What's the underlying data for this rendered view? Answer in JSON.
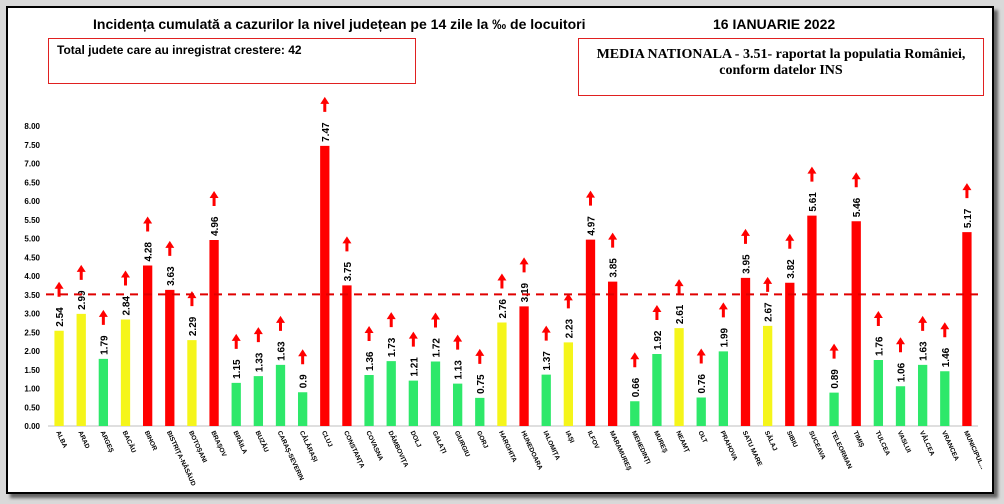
{
  "title": "Incidența cumulată a cazurilor la nivel județean pe 14 zile la ‰ de locuitori",
  "date": "16 IANUARIE 2022",
  "growth_note": "Total judete care au inregistrat crestere: 42",
  "national_note": {
    "line1": "MEDIA NATIONALA - 3.51-   raportat la populatia României,",
    "line2": "conform datelor INS"
  },
  "colors": {
    "green": "#2ee86a",
    "yellow": "#f5f51a",
    "red": "#ff0000",
    "reference": "#e00000",
    "arrow": "#ff0000"
  },
  "chart_data": {
    "type": "bar",
    "title": "Incidența cumulată a cazurilor la nivel județean pe 14 zile la ‰ de locuitori",
    "ylim": [
      0,
      8
    ],
    "yticks": [
      "0.00",
      "0.50",
      "1.00",
      "1.50",
      "2.00",
      "2.50",
      "3.00",
      "3.50",
      "4.00",
      "4.50",
      "5.00",
      "5.50",
      "6.00",
      "6.50",
      "7.00",
      "7.50",
      "8.00"
    ],
    "reference_line": 3.51,
    "categories": [
      "ALBA",
      "ARAD",
      "ARGEȘ",
      "BACĂU",
      "BIHOR",
      "BISTRIȚA-NĂSĂUD",
      "BOTOȘANI",
      "BRAȘOV",
      "BRĂILA",
      "BUZĂU",
      "CARAȘ-SEVERIN",
      "CĂLĂRAȘI",
      "CLUJ",
      "CONSTANȚA",
      "COVASNA",
      "DÂMBOVIȚA",
      "DOLJ",
      "GALAȚI",
      "GIURGIU",
      "GORJ",
      "HARGHITA",
      "HUNEDOARA",
      "IALOMIȚA",
      "IAȘI",
      "ILFOV",
      "MARAMUREȘ",
      "MEHEDINȚI",
      "MUREȘ",
      "NEAMȚ",
      "OLT",
      "PRAHOVA",
      "SATU MARE",
      "SĂLAJ",
      "SIBIU",
      "SUCEAVA",
      "TELEORMAN",
      "TIMIȘ",
      "TULCEA",
      "VASLUI",
      "VÂLCEA",
      "VRANCEA",
      "MUNICIPUL..."
    ],
    "values": [
      2.54,
      2.99,
      1.79,
      2.84,
      4.28,
      3.63,
      2.29,
      4.96,
      1.15,
      1.33,
      1.63,
      0.9,
      7.47,
      3.75,
      1.36,
      1.73,
      1.21,
      1.72,
      1.13,
      0.75,
      2.76,
      3.19,
      1.37,
      2.23,
      4.97,
      3.85,
      0.66,
      1.92,
      2.61,
      0.76,
      1.99,
      3.95,
      2.67,
      3.82,
      5.61,
      0.89,
      5.46,
      1.76,
      1.06,
      1.63,
      1.46,
      5.17
    ],
    "value_labels": [
      "2.54",
      "2.99",
      "1.79",
      "2.84",
      "4.28",
      "3.63",
      "2.29",
      "4.96",
      "1.15",
      "1.33",
      "1.63",
      "0.9",
      "7.47",
      "3.75",
      "1.36",
      "1.73",
      "1.21",
      "1.72",
      "1.13",
      "0.75",
      "2.76",
      "3.19",
      "1.37",
      "2.23",
      "4.97",
      "3.85",
      "0.66",
      "1.92",
      "2.61",
      "0.76",
      "1.99",
      "3.95",
      "2.67",
      "3.82",
      "5.61",
      "0.89",
      "5.46",
      "1.76",
      "1.06",
      "1.63",
      "1.46",
      "5.17"
    ],
    "bar_colors": [
      "yellow",
      "yellow",
      "green",
      "yellow",
      "red",
      "red",
      "yellow",
      "red",
      "green",
      "green",
      "green",
      "green",
      "red",
      "red",
      "green",
      "green",
      "green",
      "green",
      "green",
      "green",
      "yellow",
      "red",
      "green",
      "yellow",
      "red",
      "red",
      "green",
      "green",
      "yellow",
      "green",
      "green",
      "red",
      "yellow",
      "red",
      "red",
      "green",
      "red",
      "green",
      "green",
      "green",
      "green",
      "red"
    ],
    "trend": "up"
  }
}
